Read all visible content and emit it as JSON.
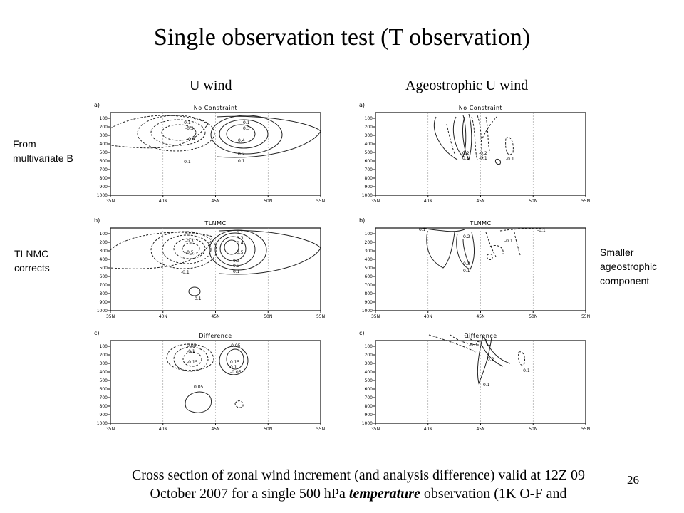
{
  "slide": {
    "title": "Single observation test (T observation)",
    "left_column_title": "U wind",
    "right_column_title": "Ageostrophic U wind",
    "annotations": {
      "from_b": [
        "From",
        "multivariate B"
      ],
      "tlnmc": [
        "TLNMC",
        "corrects"
      ],
      "smaller": [
        "Smaller",
        "ageostrophic",
        "component"
      ]
    },
    "caption_line1": "Cross section of zonal wind increment (and analysis difference) valid at 12Z 09",
    "caption_line2_a": "October 2007 for a single 500 hPa ",
    "caption_line2_b": "temperature",
    "caption_line2_c": " observation (1K O-F and",
    "slide_number": "26"
  },
  "axes": {
    "y_ticks": [
      "100",
      "200",
      "300",
      "400",
      "500",
      "600",
      "700",
      "800",
      "900",
      "1000"
    ],
    "x_ticks": [
      "35N",
      "40N",
      "45N",
      "50N",
      "55N"
    ]
  },
  "panels": [
    {
      "id": "u-a",
      "letter": "a)",
      "title": "No Constraint",
      "labels": [
        "-0.1",
        "-0.3",
        "-0.4",
        "-0.1",
        "0.1",
        "0.3",
        "0.4",
        "0.2",
        "0.1"
      ]
    },
    {
      "id": "u-b",
      "letter": "b)",
      "title": "TLNMC",
      "labels": [
        "-0.1",
        "-0.3",
        "-0.5",
        "-0.1",
        "0.1",
        "0.3",
        "0.4",
        "0.5",
        "0.3",
        "0.2",
        "0.1",
        "0.1"
      ]
    },
    {
      "id": "u-c",
      "letter": "c)",
      "title": "Difference",
      "labels": [
        "-0.05",
        "-0.1",
        "-0.15",
        "-0.05",
        "0.15",
        "0.1",
        "-0.05",
        "0.05"
      ]
    },
    {
      "id": "ag-a",
      "letter": "a)",
      "title": "No Constraint",
      "labels": [
        "0.2",
        "0.1",
        "-0.2",
        "-0.1",
        "-0.1"
      ]
    },
    {
      "id": "ag-b",
      "letter": "b)",
      "title": "TLNMC",
      "labels": [
        "0.1",
        "0.2",
        "-0.1",
        "-0.1",
        "0.3",
        "0.1"
      ]
    },
    {
      "id": "ag-c",
      "letter": "c)",
      "title": "Difference",
      "labels": [
        "-0.3",
        "0.2",
        "-0.1",
        "0.1"
      ]
    }
  ]
}
